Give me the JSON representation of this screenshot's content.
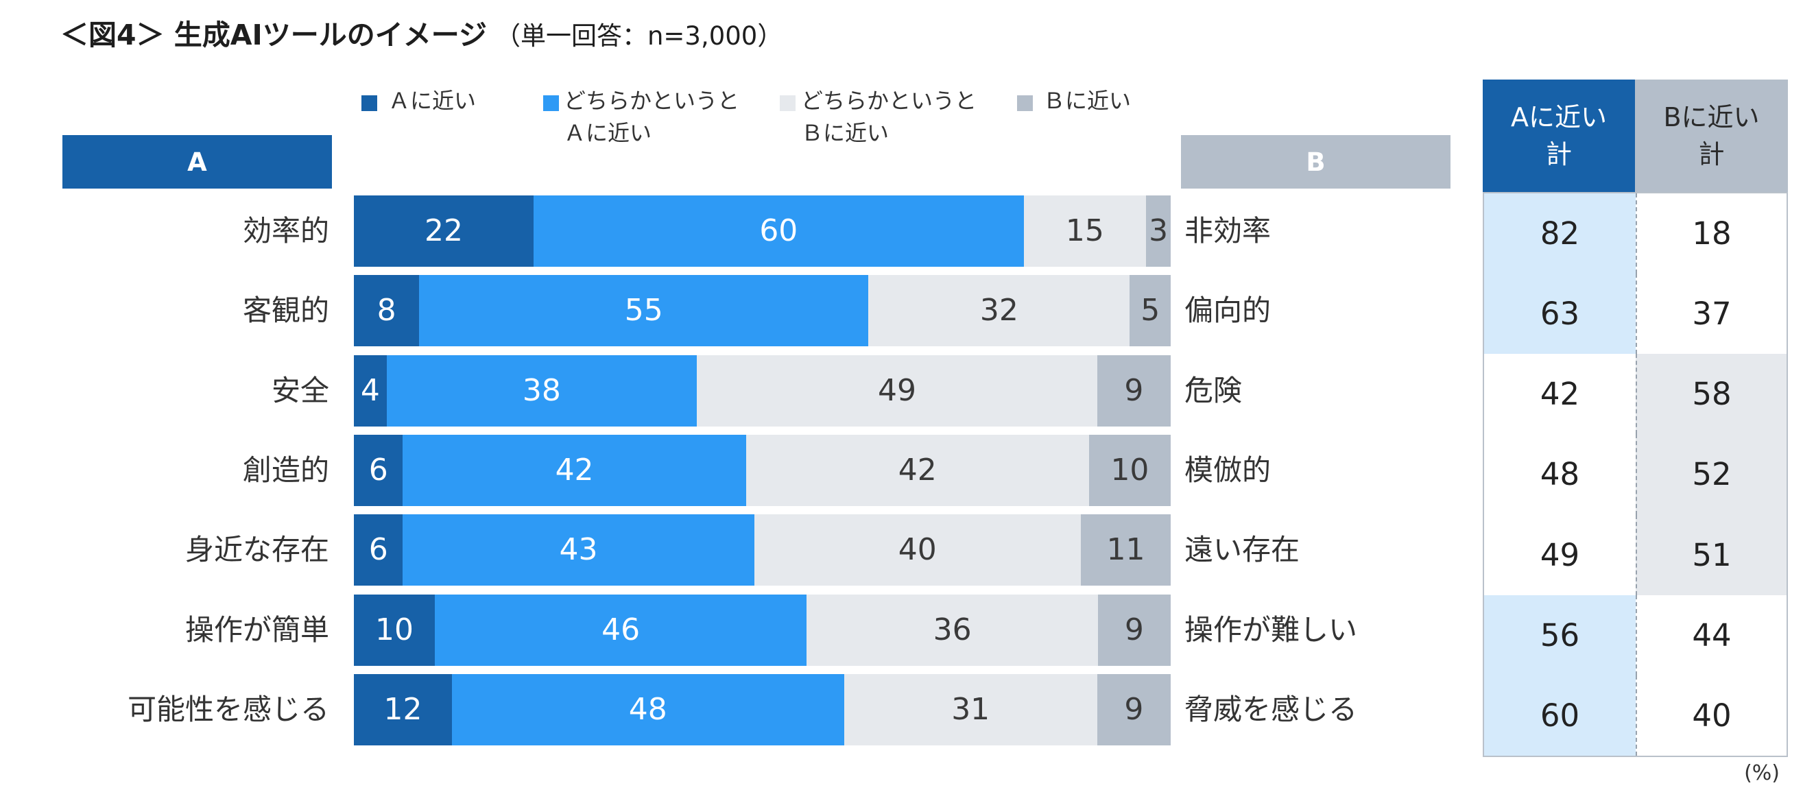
{
  "chart_data": [
    {
      "type": "bar",
      "horizontal": true,
      "stacked": true,
      "title": "＜図4＞ 生成AIツールのイメージ",
      "subtitle": "（単一回答：n=3,000）",
      "unit": "(%)",
      "legend_position": "top",
      "side_a_label": "A",
      "side_b_label": "B",
      "side_a_color": "#1761A8",
      "side_b_color": "#B4BECA",
      "xlim": [
        0,
        100
      ],
      "categories": [
        "効率的",
        "客観的",
        "安全",
        "創造的",
        "身近な存在",
        "操作が簡単",
        "可能性を感じる"
      ],
      "categories_b": [
        "非効率",
        "偏向的",
        "危険",
        "模倣的",
        "遠い存在",
        "操作が難しい",
        "脅威を感じる"
      ],
      "series": [
        {
          "name": "Ａに近い",
          "color": "#1761A8",
          "label_color": "#FFFFFF",
          "values": [
            22,
            8,
            4,
            6,
            6,
            10,
            12
          ]
        },
        {
          "name": "どちらかというと\nＡに近い",
          "color": "#2E9AF5",
          "label_color": "#FFFFFF",
          "values": [
            60,
            55,
            38,
            42,
            43,
            46,
            48
          ]
        },
        {
          "name": "どちらかというと\nＢに近い",
          "color": "#E6E9ED",
          "label_color": "#3A3A3A",
          "values": [
            15,
            32,
            49,
            42,
            40,
            36,
            31
          ]
        },
        {
          "name": "Ｂに近い",
          "color": "#B4BECA",
          "label_color": "#3A3A3A",
          "values": [
            3,
            5,
            9,
            10,
            11,
            9,
            9
          ]
        }
      ]
    },
    {
      "type": "table",
      "columns": [
        "Aに近い\n計",
        "Bに近い\n計"
      ],
      "header_colors": [
        "#1761A8",
        "#B4BECA"
      ],
      "header_text_colors": [
        "#FFFFFF",
        "#2A2A2A"
      ],
      "highlight_colors": [
        "#D5EAFB",
        "#E6E9ED"
      ],
      "rows": [
        [
          82,
          18
        ],
        [
          63,
          37
        ],
        [
          42,
          58
        ],
        [
          48,
          52
        ],
        [
          49,
          51
        ],
        [
          56,
          44
        ],
        [
          60,
          40
        ]
      ]
    }
  ]
}
